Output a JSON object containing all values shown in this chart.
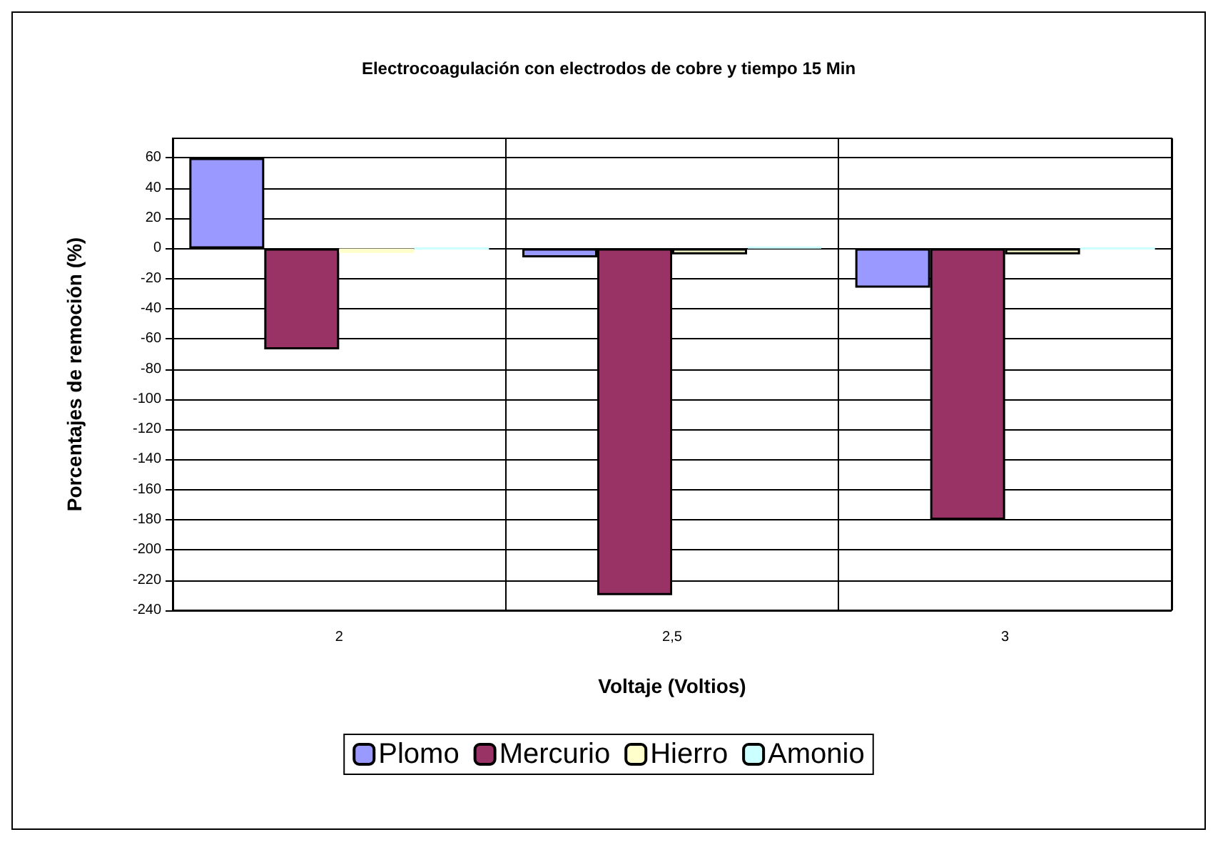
{
  "chart_data": {
    "type": "bar",
    "title": "Electrocoagulación con electrodos de cobre y tiempo 15 Min",
    "xlabel": "Voltaje (Voltios)",
    "ylabel": "Porcentajes de remoción (%)",
    "categories": [
      "2",
      "2,5",
      "3"
    ],
    "series": [
      {
        "name": "Plomo",
        "color": "#9999ff",
        "values": [
          60,
          -6,
          -26
        ]
      },
      {
        "name": "Mercurio",
        "color": "#993366",
        "values": [
          -67,
          -230,
          -180
        ]
      },
      {
        "name": "Hierro",
        "color": "#ffffcc",
        "values": [
          -3,
          -4,
          -4
        ]
      },
      {
        "name": "Amonio",
        "color": "#ccffff",
        "values": [
          0,
          1,
          0
        ]
      }
    ],
    "ylim": [
      -240,
      73
    ],
    "yticks": [
      -240,
      -220,
      -200,
      -180,
      -160,
      -140,
      -120,
      -100,
      -80,
      -60,
      -40,
      -20,
      0,
      20,
      40,
      60
    ],
    "grid": true,
    "legend": "bottom"
  }
}
